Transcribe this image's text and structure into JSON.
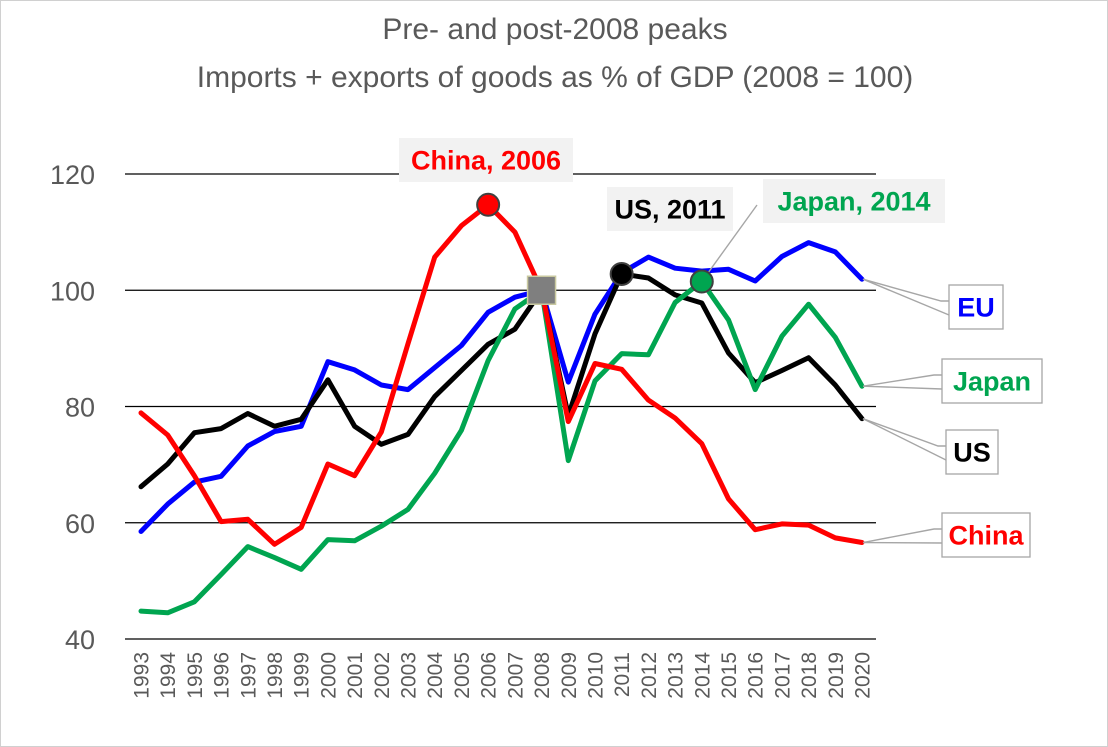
{
  "chart_data": {
    "type": "line",
    "title": "Pre- and post-2008 peaks",
    "subtitle": "Imports + exports of goods as % of GDP (2008 = 100)",
    "xlabel": "",
    "ylabel": "",
    "ylim": [
      40,
      120
    ],
    "yticks": [
      40,
      60,
      80,
      100,
      120
    ],
    "grid": true,
    "legend": "direct labels at right",
    "x": [
      1993,
      1994,
      1995,
      1996,
      1997,
      1998,
      1999,
      2000,
      2001,
      2002,
      2003,
      2004,
      2005,
      2006,
      2007,
      2008,
      2009,
      2010,
      2011,
      2012,
      2013,
      2014,
      2015,
      2016,
      2017,
      2018,
      2019,
      2020
    ],
    "series": [
      {
        "name": "EU",
        "color": "#0000ff",
        "values": [
          58.5,
          63.2,
          67,
          68,
          73.2,
          75.7,
          76.6,
          87.7,
          86.3,
          83.7,
          82.9,
          86.7,
          90.5,
          96.2,
          98.8,
          100,
          84.2,
          95.9,
          103,
          105.7,
          103.8,
          103.3,
          103.6,
          101.6,
          105.8,
          108.2,
          106.6,
          101.9
        ]
      },
      {
        "name": "US",
        "color": "#000000",
        "values": [
          66.2,
          70.1,
          75.5,
          76.2,
          78.8,
          76.6,
          77.8,
          84.6,
          76.6,
          73.5,
          75.2,
          81.7,
          86.2,
          90.7,
          93.3,
          100,
          78.4,
          92.5,
          102.8,
          102.1,
          99.2,
          97.8,
          89.2,
          84.1,
          86.2,
          88.4,
          83.7,
          77.9
        ]
      },
      {
        "name": "Japan",
        "color": "#00a550",
        "values": [
          44.8,
          44.5,
          46.4,
          51.1,
          55.9,
          54,
          52,
          57.1,
          56.9,
          59.4,
          62.3,
          68.5,
          75.9,
          87.9,
          96.8,
          100,
          70.7,
          84.4,
          89.1,
          88.9,
          97.9,
          101.5,
          94.9,
          82.9,
          92.1,
          97.6,
          91.9,
          83.5
        ]
      },
      {
        "name": "China",
        "color": "#ff0000",
        "values": [
          78.9,
          75.1,
          68.1,
          60.2,
          60.6,
          56.3,
          59.2,
          70.1,
          68.1,
          75.6,
          90.8,
          105.7,
          111.1,
          114.7,
          110,
          100,
          77.4,
          87.4,
          86.4,
          81.1,
          78,
          73.6,
          64.1,
          58.8,
          59.8,
          59.6,
          57.4,
          56.6
        ]
      }
    ],
    "annotations": [
      {
        "text": "China, 2006",
        "series": "China",
        "x": 2006,
        "y": 114.7,
        "color": "#ff0000"
      },
      {
        "text": "US, 2011",
        "series": "US",
        "x": 2011,
        "y": 102.8,
        "color": "#000000"
      },
      {
        "text": "Japan, 2014",
        "series": "Japan",
        "x": 2014,
        "y": 101.5,
        "color": "#00a550"
      }
    ],
    "base_point": {
      "x": 2008,
      "y": 100,
      "color": "#7f7f7f"
    },
    "end_labels": [
      {
        "text": "EU",
        "series": "EU",
        "color": "#0000ff"
      },
      {
        "text": "Japan",
        "series": "Japan",
        "color": "#00a550"
      },
      {
        "text": "US",
        "series": "US",
        "color": "#000000"
      },
      {
        "text": "China",
        "series": "China",
        "color": "#ff0000"
      }
    ]
  }
}
